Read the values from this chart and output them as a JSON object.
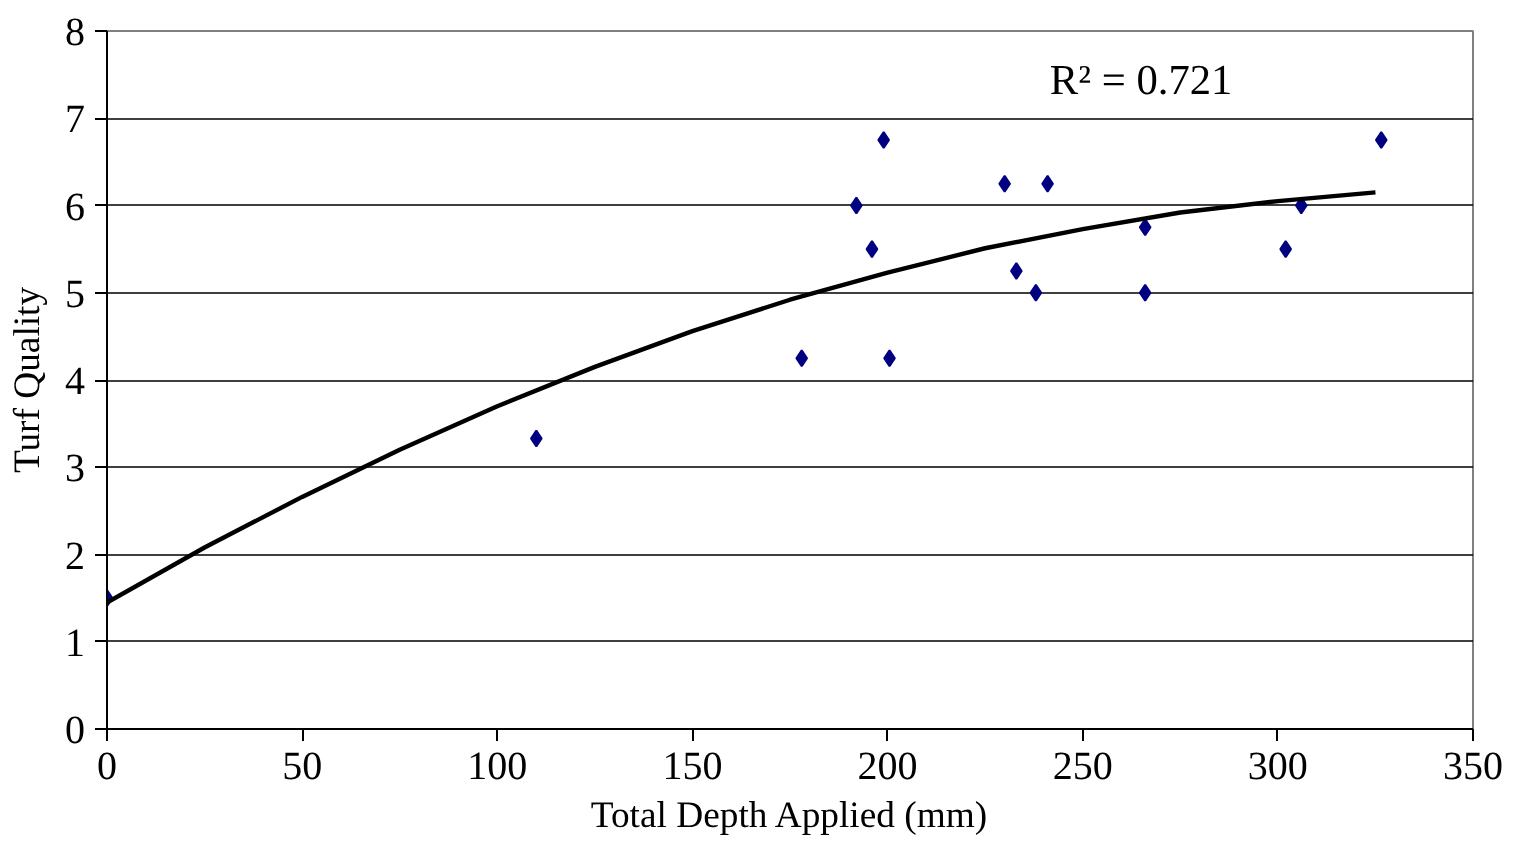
{
  "chart_data": {
    "type": "scatter",
    "xlabel": "Total Depth Applied (mm)",
    "ylabel": "Turf Quality",
    "annotations": [
      "R² = 0.721"
    ],
    "xlim": [
      0,
      350
    ],
    "ylim": [
      0,
      8
    ],
    "xticks": [
      0,
      50,
      100,
      150,
      200,
      250,
      300,
      350
    ],
    "yticks": [
      0,
      1,
      2,
      3,
      4,
      5,
      6,
      7,
      8
    ],
    "grid": "y",
    "marker": "diamond",
    "series": [
      {
        "color": "#000080",
        "x": [
          0,
          110,
          178,
          192,
          196,
          199,
          200.5,
          230,
          233,
          238,
          241,
          266,
          266,
          302,
          306,
          326.5
        ],
        "values": [
          1.5,
          3.33,
          4.25,
          6.0,
          5.5,
          6.75,
          4.25,
          6.25,
          5.25,
          5.0,
          6.25,
          5.75,
          5.0,
          5.5,
          6.0,
          6.75
        ]
      },
      {
        "type": "line",
        "color": "#000000",
        "marker": "none",
        "line_style": "solid",
        "x": [
          0,
          25,
          50,
          75,
          100,
          125,
          150,
          175,
          200,
          225,
          250,
          275,
          300,
          325
        ],
        "values": [
          1.45,
          2.08,
          2.66,
          3.2,
          3.7,
          4.15,
          4.56,
          4.92,
          5.23,
          5.51,
          5.73,
          5.92,
          6.05,
          6.15
        ]
      }
    ]
  }
}
